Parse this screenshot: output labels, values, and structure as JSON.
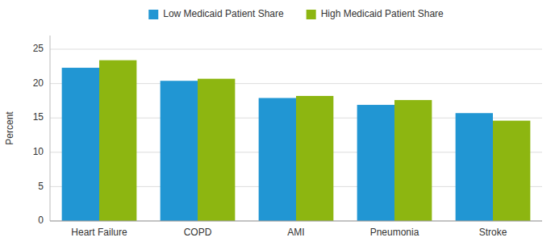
{
  "chart_data": {
    "type": "bar",
    "categories": [
      "Heart Failure",
      "COPD",
      "AMI",
      "Pneumonia",
      "Stroke"
    ],
    "series": [
      {
        "name": "Low Medicaid Patient Share",
        "color": "#2196D3",
        "values": [
          22.3,
          20.4,
          17.9,
          16.9,
          15.7
        ]
      },
      {
        "name": "High Medicaid Patient Share",
        "color": "#8DB611",
        "values": [
          23.4,
          20.7,
          18.2,
          17.6,
          14.6
        ]
      }
    ],
    "ylabel": "Percent",
    "ylim": [
      0,
      27
    ],
    "yticks": [
      0,
      5,
      10,
      15,
      20,
      25
    ],
    "grid": true,
    "legend": "top"
  }
}
